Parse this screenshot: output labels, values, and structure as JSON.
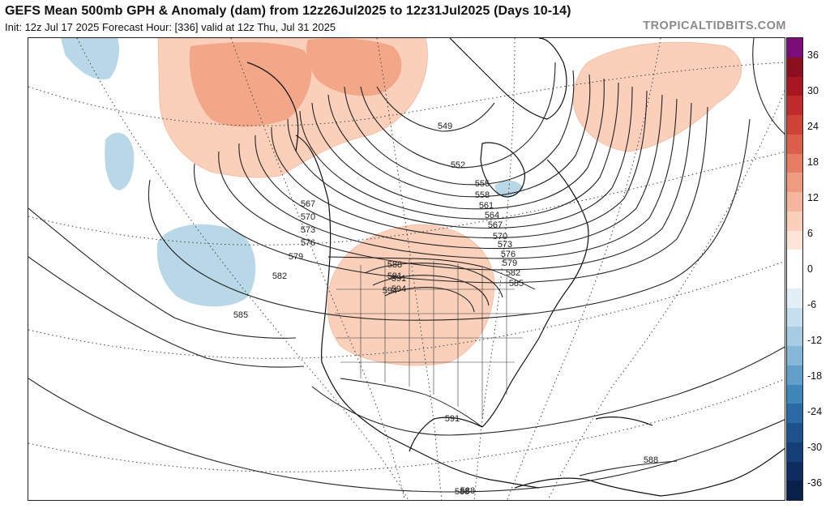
{
  "header": {
    "title": "GEFS Mean 500mb GPH & Anomaly (dam) from 12z26Jul2025 to 12z31Jul2025 (Days 10-14)",
    "subtitle": "Init: 12z Jul 17 2025   Forecast Hour: [336]   valid at 12z Thu, Jul 31 2025",
    "watermark": "TROPICALTIDBITS.COM"
  },
  "colorbar": {
    "labels": [
      "36",
      "30",
      "24",
      "18",
      "12",
      "6",
      "0",
      "-6",
      "-12",
      "-18",
      "-24",
      "-30",
      "-36"
    ],
    "colors": [
      "#7a0d7a",
      "#8b0f1e",
      "#a8161f",
      "#bf2a2a",
      "#cf4437",
      "#dc5f49",
      "#e67c62",
      "#f09a80",
      "#f6b69d",
      "#fad0bb",
      "#fde5d8",
      "#ffffff",
      "#ffffff",
      "#e3eef6",
      "#c5dfec",
      "#a6cde3",
      "#85b8d8",
      "#62a0cb",
      "#3f86bb",
      "#2a6aa6",
      "#1d528f",
      "#153f78",
      "#0e2c5f",
      "#08204a"
    ]
  },
  "map": {
    "contour_labels": [
      "549",
      "552",
      "555",
      "558",
      "561",
      "564",
      "567",
      "570",
      "573",
      "576",
      "579",
      "582",
      "585",
      "588",
      "591",
      "594",
      "567",
      "570",
      "573",
      "576",
      "579",
      "582",
      "585",
      "588",
      "591",
      "594",
      "591",
      "588",
      "588",
      "585",
      "582",
      "579",
      "576",
      "573",
      "570",
      "567"
    ]
  }
}
